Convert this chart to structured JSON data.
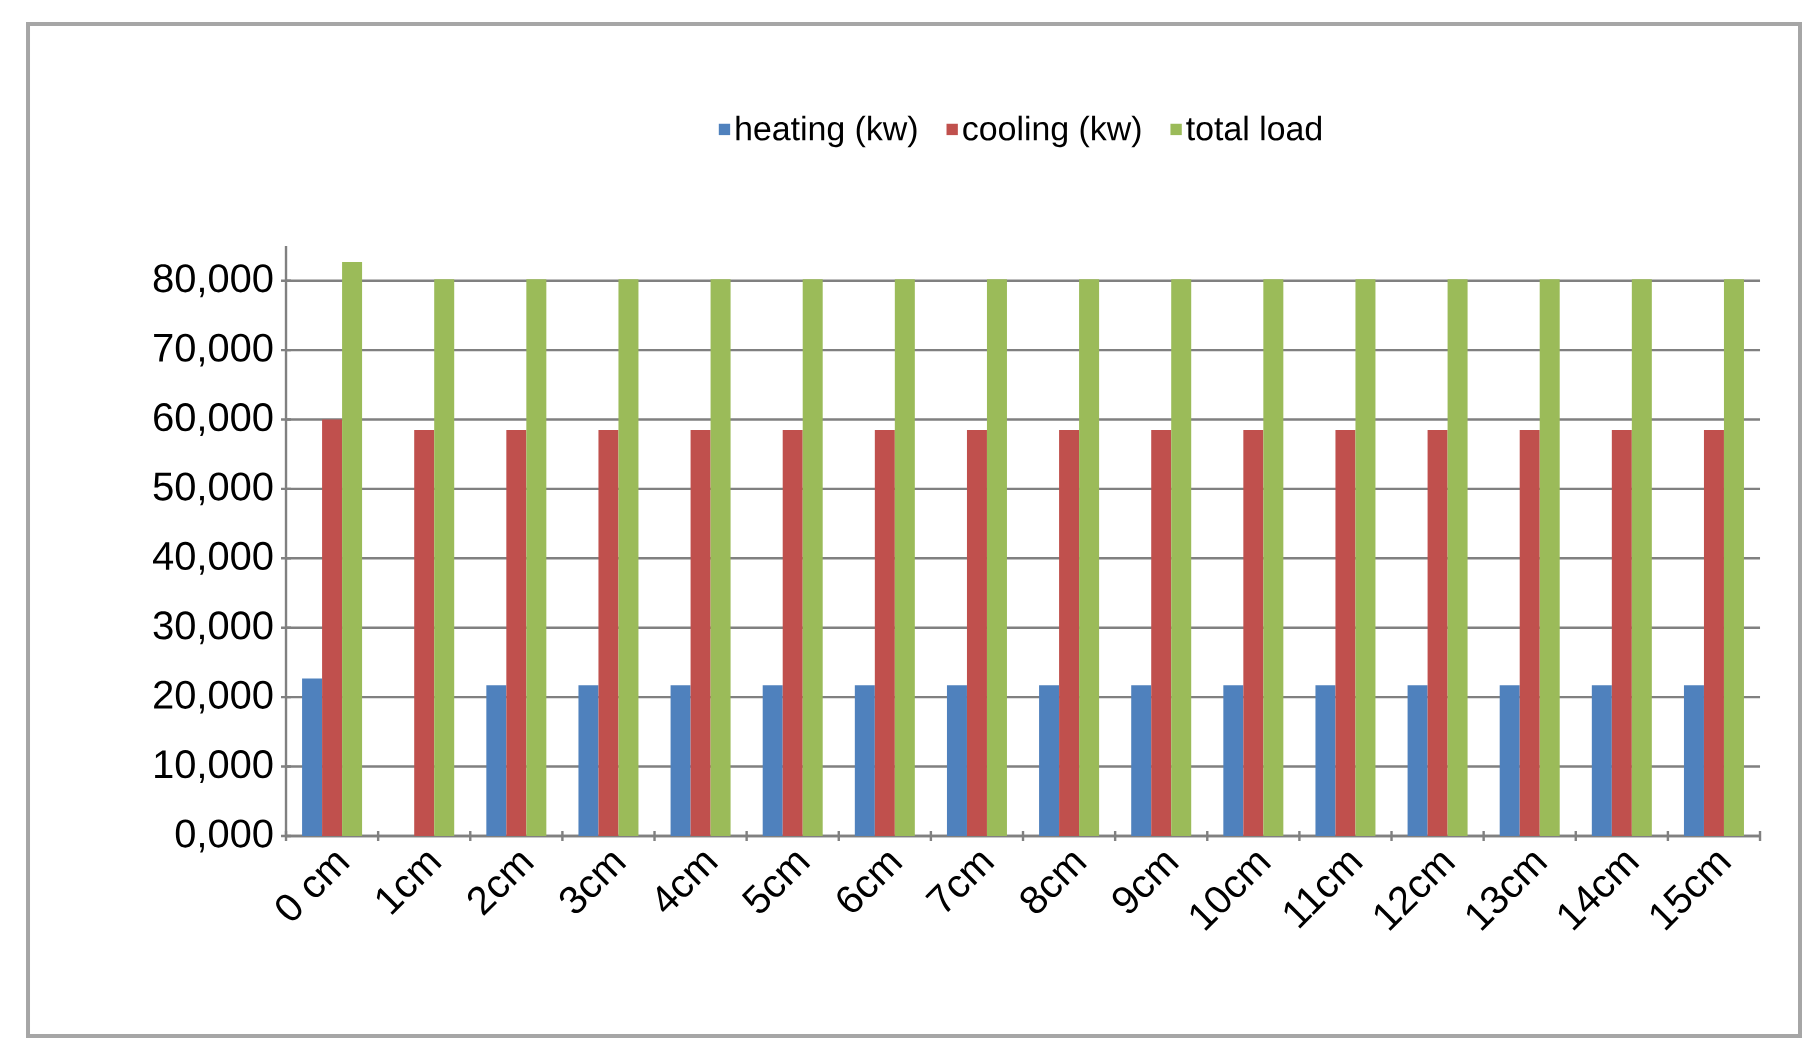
{
  "chart_data": {
    "type": "bar",
    "categories": [
      "0 cm",
      "1cm",
      "2cm",
      "3cm",
      "4cm",
      "5cm",
      "6cm",
      "7cm",
      "8cm",
      "9cm",
      "10cm",
      "11cm",
      "12cm",
      "13cm",
      "14cm",
      "15cm"
    ],
    "series": [
      {
        "name": "heating (kw)",
        "color": "#4f81bd",
        "values": [
          22700,
          null,
          21700,
          21700,
          21700,
          21700,
          21700,
          21700,
          21700,
          21700,
          21700,
          21700,
          21700,
          21700,
          21700,
          21700
        ]
      },
      {
        "name": "cooling (kw)",
        "color": "#c0504d",
        "values": [
          60000,
          58500,
          58500,
          58500,
          58500,
          58500,
          58500,
          58500,
          58500,
          58500,
          58500,
          58500,
          58500,
          58500,
          58500,
          58500
        ]
      },
      {
        "name": "total load",
        "color": "#9bbb59",
        "values": [
          82700,
          80200,
          80200,
          80200,
          80200,
          80200,
          80200,
          80200,
          80200,
          80200,
          80200,
          80200,
          80200,
          80200,
          80200,
          80200
        ]
      }
    ],
    "ylim": [
      0,
      85000
    ],
    "yticks": [
      {
        "value": 0,
        "label": "0,000"
      },
      {
        "value": 10000,
        "label": "10,000"
      },
      {
        "value": 20000,
        "label": "20,000"
      },
      {
        "value": 30000,
        "label": "30,000"
      },
      {
        "value": 40000,
        "label": "40,000"
      },
      {
        "value": 50000,
        "label": "50,000"
      },
      {
        "value": 60000,
        "label": "60,000"
      },
      {
        "value": 70000,
        "label": "70,000"
      },
      {
        "value": 80000,
        "label": "80,000"
      }
    ],
    "grid": "y",
    "legend": "top"
  }
}
